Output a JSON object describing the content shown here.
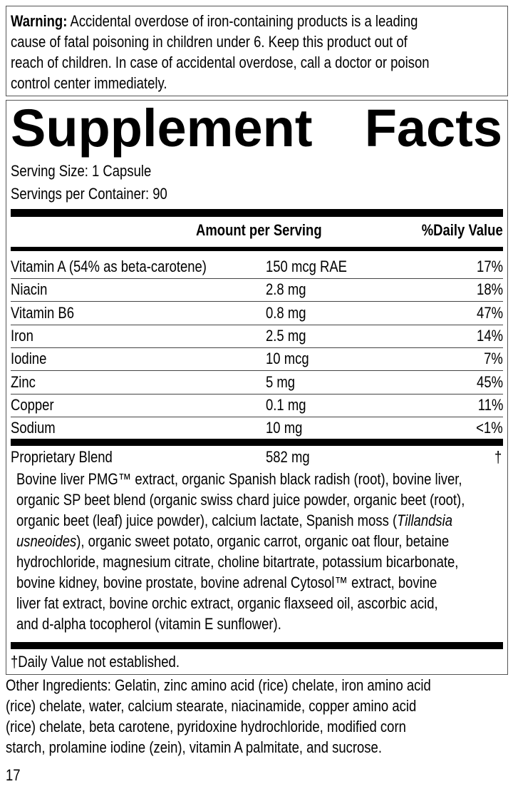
{
  "warning": {
    "label": "Warning:",
    "lines": [
      " Accidental overdose of iron-containing products is a leading",
      "cause of fatal poisoning in children under 6. Keep this product out of",
      "reach of children. In case of accidental overdose, call a doctor or poison",
      "control center immediately."
    ]
  },
  "facts": {
    "title_left": "Supplement",
    "title_right": "Facts",
    "serving_size": "Serving Size: 1 Capsule",
    "servings_per_container": "Servings per Container: 90",
    "header_amount": "Amount per Serving",
    "header_dv": "%Daily Value",
    "rows": [
      {
        "name": "Vitamin A (54% as beta-carotene)",
        "amount": "150 mcg RAE",
        "dv": "17%"
      },
      {
        "name": "Niacin",
        "amount": "2.8 mg",
        "dv": "18%"
      },
      {
        "name": "Vitamin B6",
        "amount": "0.8 mg",
        "dv": "47%"
      },
      {
        "name": "Iron",
        "amount": "2.5 mg",
        "dv": "14%"
      },
      {
        "name": "Iodine",
        "amount": "10 mcg",
        "dv": "7%"
      },
      {
        "name": "Zinc",
        "amount": "5 mg",
        "dv": "45%"
      },
      {
        "name": "Copper",
        "amount": "0.1 mg",
        "dv": "11%"
      },
      {
        "name": "Sodium",
        "amount": "10 mg",
        "dv": "<1%"
      }
    ],
    "blend": {
      "name": "Proprietary Blend",
      "amount": "582 mg",
      "dv": "†",
      "italic_terms": [
        "Tillandsia",
        "usneoides"
      ],
      "lines": [
        "Bovine liver PMG™ extract, organic Spanish black radish (root), bovine liver,",
        "organic SP beet blend (organic swiss chard juice powder, organic beet (root),",
        "organic beet (leaf) juice powder), calcium lactate, Spanish moss (Tillandsia",
        "usneoides), organic sweet potato, organic carrot, organic oat flour, betaine",
        "hydrochloride, magnesium citrate, choline bitartrate, potassium bicarbonate,",
        "bovine kidney, bovine prostate, bovine adrenal Cytosol™ extract, bovine",
        "liver fat extract, bovine orchic extract, organic flaxseed oil, ascorbic acid,",
        "and d-alpha tocopherol (vitamin E sunflower)."
      ]
    },
    "footnote": "†Daily Value not established."
  },
  "other_ingredients": {
    "lines": [
      "Other Ingredients: Gelatin, zinc amino acid (rice) chelate, iron amino acid",
      "(rice) chelate, water, calcium stearate, niacinamide, copper amino acid",
      "(rice) chelate, beta carotene, pyridoxine hydrochloride, modified corn",
      "starch, prolamine iodine (zein), vitamin A palmitate, and sucrose."
    ]
  },
  "page_number": "17"
}
